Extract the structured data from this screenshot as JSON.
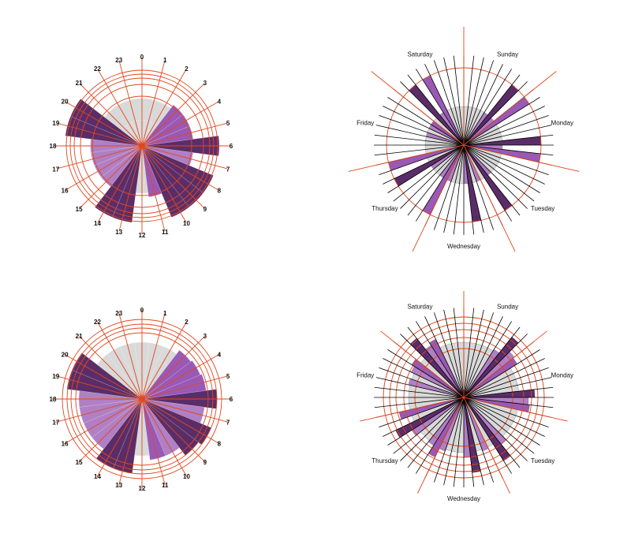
{
  "colors": {
    "low": "#d9d9d9",
    "mid": "#b07fc4",
    "high": "#9a59b5",
    "top": "#5b2d68",
    "axis": "#e0481f",
    "spoke": "#000000"
  },
  "chart_data": [
    {
      "type": "polar-bar",
      "hour_labels": [
        "0",
        "1",
        "2",
        "3",
        "4",
        "5",
        "6",
        "7",
        "8",
        "9",
        "10",
        "11",
        "12",
        "13",
        "14",
        "15",
        "16",
        "17",
        "18",
        "19",
        "20",
        "21",
        "22",
        "23"
      ],
      "values": [
        1,
        1,
        1,
        2,
        2,
        2,
        3,
        2,
        3,
        3,
        3,
        2,
        1,
        3,
        3,
        2,
        2,
        2,
        2,
        3,
        3,
        1,
        1,
        1
      ],
      "color_levels": [
        0,
        0,
        0,
        2,
        2,
        2,
        3,
        1,
        3,
        3,
        3,
        2,
        0,
        3,
        3,
        1,
        1,
        1,
        1,
        3,
        3,
        0,
        0,
        0
      ]
    },
    {
      "type": "polar-bar",
      "day_labels": [
        "Sunday",
        "Monday",
        "Tuesday",
        "Wednesday",
        "Thursday",
        "Friday",
        "Saturday"
      ],
      "values": [
        1,
        1,
        1,
        1,
        1,
        1,
        2,
        1,
        2,
        1,
        1,
        1,
        1,
        2,
        1,
        2,
        1,
        1,
        1,
        1,
        1,
        1,
        2,
        1,
        1,
        1,
        2,
        1,
        1,
        1,
        1,
        1,
        2,
        1,
        1,
        1,
        1,
        2,
        1,
        2,
        1,
        1,
        1,
        1,
        1,
        1,
        1,
        1,
        1,
        2,
        1,
        2,
        1,
        1,
        1,
        1
      ],
      "color_levels": [
        0,
        0,
        0,
        0,
        0,
        1,
        3,
        1,
        2,
        0,
        0,
        0,
        0,
        3,
        1,
        2,
        0,
        0,
        0,
        0,
        0,
        1,
        3,
        0,
        1,
        0,
        3,
        1,
        0,
        0,
        0,
        1,
        2,
        1,
        0,
        0,
        1,
        3,
        0,
        2,
        0,
        0,
        0,
        0,
        1,
        0,
        1,
        2,
        0,
        3,
        1,
        2,
        0,
        0,
        0,
        0
      ]
    },
    {
      "type": "polar-bar",
      "hour_labels": [
        "0",
        "1",
        "2",
        "3",
        "4",
        "5",
        "6",
        "7",
        "8",
        "9",
        "10",
        "11",
        "12",
        "13",
        "14",
        "15",
        "16",
        "17",
        "18",
        "19",
        "20",
        "21",
        "22",
        "23"
      ],
      "values": [
        72,
        72,
        72,
        78,
        80,
        82,
        95,
        80,
        95,
        90,
        78,
        78,
        72,
        95,
        95,
        80,
        80,
        80,
        80,
        96,
        96,
        72,
        72,
        72
      ],
      "color_levels": [
        0,
        0,
        0,
        2,
        2,
        2,
        3,
        1,
        3,
        3,
        1,
        2,
        0,
        3,
        3,
        1,
        1,
        1,
        1,
        3,
        3,
        0,
        0,
        0
      ]
    },
    {
      "type": "polar-bar",
      "day_labels": [
        "Sunday",
        "Monday",
        "Tuesday",
        "Wednesday",
        "Thursday",
        "Friday",
        "Saturday"
      ],
      "values": [
        70,
        70,
        70,
        70,
        70,
        72,
        98,
        82,
        80,
        70,
        70,
        70,
        70,
        90,
        82,
        84,
        70,
        70,
        70,
        70,
        70,
        76,
        95,
        70,
        72,
        70,
        96,
        76,
        70,
        70,
        70,
        72,
        84,
        72,
        70,
        70,
        78,
        96,
        70,
        84,
        70,
        70,
        70,
        70,
        72,
        70,
        74,
        78,
        70,
        96,
        78,
        82,
        70,
        70,
        70,
        70
      ],
      "color_levels": [
        0,
        0,
        0,
        0,
        0,
        1,
        3,
        1,
        2,
        0,
        0,
        0,
        0,
        3,
        1,
        2,
        0,
        0,
        0,
        0,
        0,
        1,
        3,
        0,
        1,
        0,
        3,
        1,
        0,
        0,
        0,
        1,
        2,
        1,
        0,
        0,
        1,
        3,
        0,
        2,
        0,
        0,
        0,
        0,
        1,
        0,
        1,
        2,
        0,
        3,
        1,
        2,
        0,
        0,
        0,
        0
      ]
    }
  ]
}
